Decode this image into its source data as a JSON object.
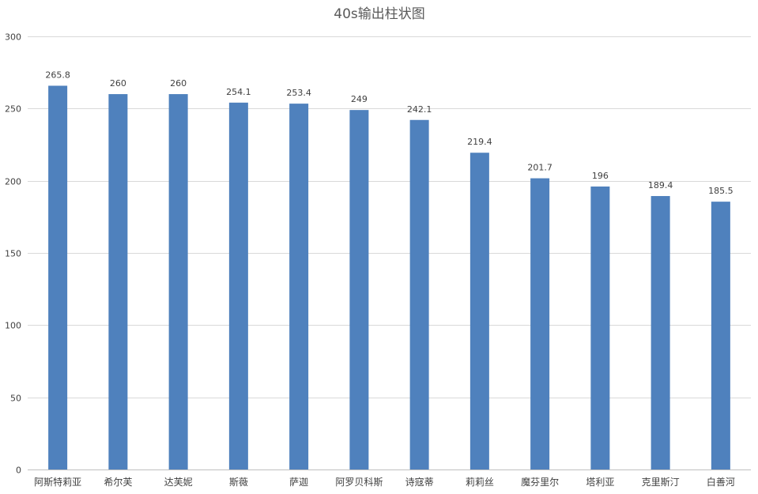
{
  "chart_data": {
    "type": "bar",
    "title": "40s输出柱状图",
    "categories": [
      "阿斯特莉亚",
      "希尔芙",
      "达芙妮",
      "斯薇",
      "萨迦",
      "阿罗贝科斯",
      "诗寇蒂",
      "莉莉丝",
      "魔芬里尔",
      "塔利亚",
      "克里斯汀",
      "白善河"
    ],
    "values": [
      265.8,
      260,
      260,
      254.1,
      253.4,
      249,
      242.1,
      219.4,
      201.7,
      196,
      189.4,
      185.5
    ],
    "data_labels": [
      "265.8",
      "260",
      "260",
      "254.1",
      "253.4",
      "249",
      "242.1",
      "219.4",
      "201.7",
      "196",
      "189.4",
      "185.5"
    ],
    "ylim": [
      0,
      300
    ],
    "yticks": [
      0,
      50,
      100,
      150,
      200,
      250,
      300
    ],
    "grid": true,
    "legend": "none",
    "colors": {
      "bar": "#4f81bd",
      "grid": "#d9d9d9",
      "text": "#404040",
      "title": "#595959"
    }
  }
}
